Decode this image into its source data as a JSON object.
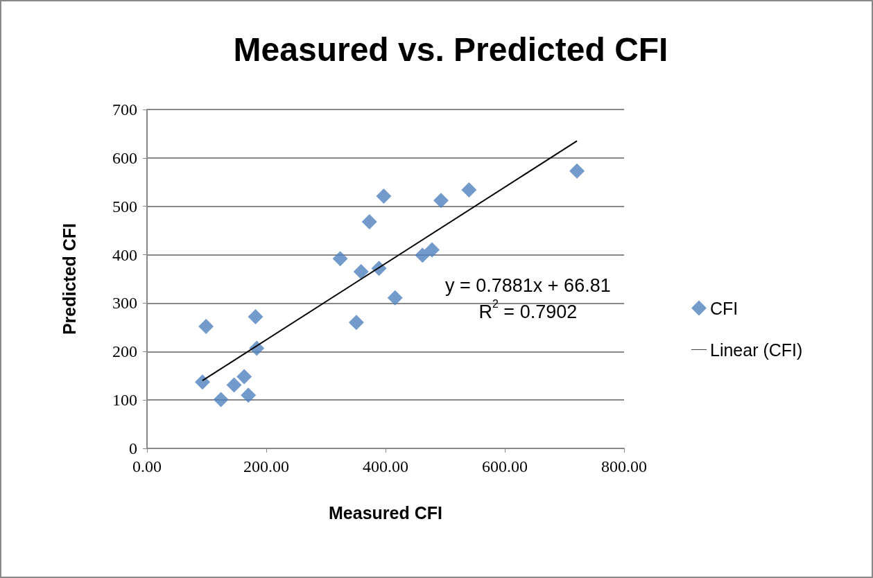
{
  "chart_data": {
    "type": "scatter",
    "title": "Measured vs. Predicted CFI",
    "xlabel": "Measured CFI",
    "ylabel": "Predicted CFI",
    "series": [
      {
        "name": "CFI",
        "color": "#4f81bd",
        "marker": "diamond",
        "x": [
          99,
          93,
          124,
          146,
          163,
          170,
          182,
          184,
          324,
          351,
          359,
          373,
          389,
          397,
          416,
          462,
          478,
          493,
          540,
          721
        ],
        "values": [
          252,
          137,
          101,
          131,
          148,
          110,
          272,
          207,
          392,
          260,
          365,
          468,
          372,
          521,
          311,
          399,
          410,
          512,
          534,
          573
        ]
      },
      {
        "name": "Linear (CFI)",
        "type": "line",
        "color": "#000000",
        "marker": "none",
        "line_style": "solid",
        "x": [
          93,
          721
        ],
        "values": [
          140,
          635
        ]
      }
    ],
    "xlim": [
      0,
      800
    ],
    "xticks": [
      {
        "value": 0,
        "label": "0.00"
      },
      {
        "value": 200,
        "label": "200.00"
      },
      {
        "value": 400,
        "label": "400.00"
      },
      {
        "value": 600,
        "label": "600.00"
      },
      {
        "value": 800,
        "label": "800.00"
      }
    ],
    "ylim": [
      0,
      700
    ],
    "yticks": [
      0,
      100,
      200,
      300,
      400,
      500,
      600,
      700
    ],
    "grid": "y",
    "legend": "right",
    "annotations": [
      "y = 0.7881x + 66.81\nR$^{2}$ = 0.7902"
    ]
  }
}
